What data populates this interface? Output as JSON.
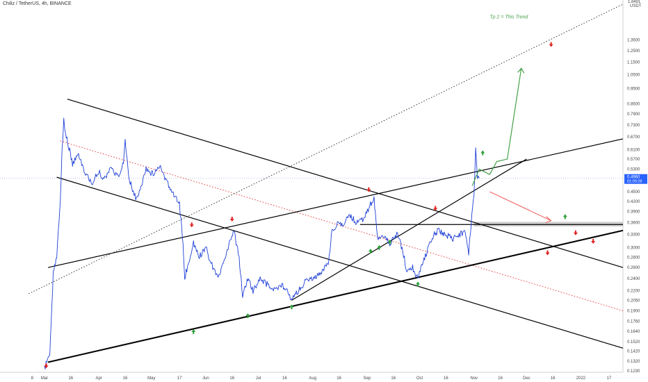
{
  "header": {
    "symbol": "Chiliz / TetherUS, 4h, BINANCE"
  },
  "chart_data": {
    "type": "candlestick-line",
    "title": "Chiliz / TetherUS, 4h, BINANCE",
    "axis_unit": [
      "1.8491",
      "USDT"
    ],
    "y_scale": "log",
    "ylim": [
      0.123,
      1.75
    ],
    "xlim": [
      "2021-03-01",
      "2022-01-25"
    ],
    "y_ticks": [
      "1.3500",
      "1.2500",
      "1.1500",
      "1.0500",
      "0.9500",
      "0.8500",
      "0.7900",
      "0.7300",
      "0.6700",
      "0.6100",
      "0.5700",
      "0.5300",
      "0.4960",
      "0.4500",
      "0.4200",
      "0.3900",
      "0.3600",
      "0.3300",
      "0.3000",
      "0.2800",
      "0.2600",
      "0.2400",
      "0.2200",
      "0.2050",
      "0.1900",
      "0.1760",
      "0.1640",
      "0.1520",
      "0.1420",
      "0.1320",
      "0.1230"
    ],
    "price_tag": {
      "value": "0.4960",
      "countdown": "01:09:28",
      "y": 0.496,
      "color": "#2962ff"
    },
    "x_ticks": [
      {
        "label": "8",
        "x": "2021-02-22"
      },
      {
        "label": "Mar",
        "x": "2021-03-01"
      },
      {
        "label": "16",
        "x": "2021-03-16"
      },
      {
        "label": "Apr",
        "x": "2021-04-01"
      },
      {
        "label": "16",
        "x": "2021-04-16"
      },
      {
        "label": "May",
        "x": "2021-05-01"
      },
      {
        "label": "17",
        "x": "2021-05-17"
      },
      {
        "label": "Jun",
        "x": "2021-06-01"
      },
      {
        "label": "16",
        "x": "2021-06-16"
      },
      {
        "label": "Jul",
        "x": "2021-07-01"
      },
      {
        "label": "16",
        "x": "2021-07-16"
      },
      {
        "label": "Aug",
        "x": "2021-08-01"
      },
      {
        "label": "16",
        "x": "2021-08-16"
      },
      {
        "label": "Sep",
        "x": "2021-09-01"
      },
      {
        "label": "16",
        "x": "2021-09-16"
      },
      {
        "label": "Oct",
        "x": "2021-10-01"
      },
      {
        "label": "16",
        "x": "2021-10-16"
      },
      {
        "label": "Nov",
        "x": "2021-11-01"
      },
      {
        "label": "16",
        "x": "2021-11-16"
      },
      {
        "label": "Dec",
        "x": "2021-12-01"
      },
      {
        "label": "16",
        "x": "2021-12-16"
      },
      {
        "label": "2022",
        "x": "2022-01-01"
      },
      {
        "label": "17",
        "x": "2022-01-17"
      }
    ],
    "price_path": [
      [
        "2021-03-01",
        0.125
      ],
      [
        "2021-03-04",
        0.14
      ],
      [
        "2021-03-06",
        0.25
      ],
      [
        "2021-03-08",
        0.28
      ],
      [
        "2021-03-10",
        0.42
      ],
      [
        "2021-03-11",
        0.6
      ],
      [
        "2021-03-12",
        0.76
      ],
      [
        "2021-03-13",
        0.68
      ],
      [
        "2021-03-15",
        0.62
      ],
      [
        "2021-03-17",
        0.55
      ],
      [
        "2021-03-20",
        0.6
      ],
      [
        "2021-03-24",
        0.52
      ],
      [
        "2021-03-28",
        0.48
      ],
      [
        "2021-04-01",
        0.52
      ],
      [
        "2021-04-04",
        0.49
      ],
      [
        "2021-04-08",
        0.54
      ],
      [
        "2021-04-12",
        0.5
      ],
      [
        "2021-04-15",
        0.56
      ],
      [
        "2021-04-16",
        0.66
      ],
      [
        "2021-04-18",
        0.5
      ],
      [
        "2021-04-22",
        0.43
      ],
      [
        "2021-04-25",
        0.46
      ],
      [
        "2021-04-28",
        0.53
      ],
      [
        "2021-05-02",
        0.51
      ],
      [
        "2021-05-06",
        0.54
      ],
      [
        "2021-05-10",
        0.48
      ],
      [
        "2021-05-13",
        0.45
      ],
      [
        "2021-05-17",
        0.41
      ],
      [
        "2021-05-19",
        0.31
      ],
      [
        "2021-05-20",
        0.24
      ],
      [
        "2021-05-22",
        0.27
      ],
      [
        "2021-05-25",
        0.31
      ],
      [
        "2021-05-28",
        0.28
      ],
      [
        "2021-06-01",
        0.3
      ],
      [
        "2021-06-05",
        0.26
      ],
      [
        "2021-06-08",
        0.24
      ],
      [
        "2021-06-12",
        0.28
      ],
      [
        "2021-06-15",
        0.32
      ],
      [
        "2021-06-17",
        0.34
      ],
      [
        "2021-06-20",
        0.28
      ],
      [
        "2021-06-22",
        0.21
      ],
      [
        "2021-06-25",
        0.24
      ],
      [
        "2021-06-28",
        0.22
      ],
      [
        "2021-07-02",
        0.24
      ],
      [
        "2021-07-06",
        0.23
      ],
      [
        "2021-07-10",
        0.22
      ],
      [
        "2021-07-14",
        0.23
      ],
      [
        "2021-07-18",
        0.22
      ],
      [
        "2021-07-20",
        0.205
      ],
      [
        "2021-07-24",
        0.22
      ],
      [
        "2021-07-28",
        0.235
      ],
      [
        "2021-08-02",
        0.24
      ],
      [
        "2021-08-06",
        0.25
      ],
      [
        "2021-08-10",
        0.27
      ],
      [
        "2021-08-12",
        0.34
      ],
      [
        "2021-08-16",
        0.36
      ],
      [
        "2021-08-18",
        0.35
      ],
      [
        "2021-08-22",
        0.38
      ],
      [
        "2021-08-26",
        0.36
      ],
      [
        "2021-08-30",
        0.37
      ],
      [
        "2021-09-03",
        0.41
      ],
      [
        "2021-09-05",
        0.43
      ],
      [
        "2021-09-07",
        0.32
      ],
      [
        "2021-09-10",
        0.33
      ],
      [
        "2021-09-14",
        0.31
      ],
      [
        "2021-09-18",
        0.33
      ],
      [
        "2021-09-21",
        0.3
      ],
      [
        "2021-09-24",
        0.25
      ],
      [
        "2021-09-27",
        0.26
      ],
      [
        "2021-09-30",
        0.24
      ],
      [
        "2021-10-03",
        0.27
      ],
      [
        "2021-10-06",
        0.3
      ],
      [
        "2021-10-09",
        0.33
      ],
      [
        "2021-10-12",
        0.34
      ],
      [
        "2021-10-16",
        0.33
      ],
      [
        "2021-10-20",
        0.32
      ],
      [
        "2021-10-24",
        0.33
      ],
      [
        "2021-10-27",
        0.34
      ],
      [
        "2021-10-29",
        0.29
      ],
      [
        "2021-10-30",
        0.34
      ],
      [
        "2021-11-01",
        0.44
      ],
      [
        "2021-11-02",
        0.62
      ],
      [
        "2021-11-03",
        0.5
      ],
      [
        "2021-11-04",
        0.496
      ]
    ],
    "lines": [
      {
        "name": "descending-channel-upper",
        "from": [
          "2021-03-14",
          0.88
        ],
        "to": [
          "2022-01-25",
          0.26
        ],
        "style": "solid",
        "color": "#000000",
        "width": 1.2
      },
      {
        "name": "descending-channel-lower",
        "from": [
          "2021-03-08",
          0.5
        ],
        "to": [
          "2022-01-25",
          0.145
        ],
        "style": "solid",
        "color": "#000000",
        "width": 1.2
      },
      {
        "name": "descending-midline",
        "from": [
          "2021-03-10",
          0.65
        ],
        "to": [
          "2022-01-25",
          0.19
        ],
        "style": "dotted",
        "color": "#e53935",
        "width": 1
      },
      {
        "name": "ascending-support",
        "from": [
          "2021-03-03",
          0.131
        ],
        "to": [
          "2022-01-25",
          0.34
        ],
        "style": "solid",
        "color": "#000000",
        "width": 2
      },
      {
        "name": "ascending-resistance",
        "from": [
          "2021-03-03",
          0.26
        ],
        "to": [
          "2022-01-25",
          0.66
        ],
        "style": "solid",
        "color": "#000000",
        "width": 1.2
      },
      {
        "name": "dotted-trend",
        "from": [
          "2021-02-20",
          0.215
        ],
        "to": [
          "2022-01-25",
          1.75
        ],
        "style": "dotted",
        "color": "#333333",
        "width": 1
      },
      {
        "name": "inner-trend",
        "from": [
          "2021-07-20",
          0.205
        ],
        "to": [
          "2021-12-01",
          0.57
        ],
        "style": "solid",
        "color": "#000000",
        "width": 1.2
      },
      {
        "name": "horizontal-level",
        "from": [
          "2021-08-28",
          0.355
        ],
        "to": [
          "2022-01-25",
          0.355
        ],
        "style": "solid",
        "color": "#000000",
        "width": 1.2
      }
    ],
    "zone": {
      "y1": 0.35,
      "y2": 0.362,
      "from": "2021-11-01",
      "to": "2022-01-25",
      "color": "#b0b0b0"
    },
    "tp_path": {
      "name": "tp2-path",
      "color": "#43a047",
      "points": [
        [
          "2021-10-31",
          0.47
        ],
        [
          "2021-11-04",
          0.53
        ],
        [
          "2021-11-10",
          0.51
        ],
        [
          "2021-11-14",
          0.56
        ],
        [
          "2021-11-20",
          0.57
        ],
        [
          "2021-11-28",
          1.1
        ]
      ]
    },
    "red_arrow": {
      "from": [
        "2021-11-10",
        0.45
      ],
      "to": [
        "2021-12-15",
        0.365
      ],
      "color": "#ef5350"
    },
    "annotation": {
      "text": "Tp 2 = This Trend",
      "x": "2021-11-10",
      "y": 1.58,
      "color": "#43a047"
    },
    "markers_up": [
      [
        "2021-05-25",
        0.163
      ],
      [
        "2021-06-25",
        0.183
      ],
      [
        "2021-07-20",
        0.195
      ],
      [
        "2021-09-03",
        0.292
      ],
      [
        "2021-09-08",
        0.3
      ],
      [
        "2021-09-14",
        0.312
      ],
      [
        "2021-09-30",
        0.23
      ],
      [
        "2021-11-06",
        0.595
      ],
      [
        "2021-12-23",
        0.375
      ]
    ],
    "markers_down": [
      [
        "2021-03-02",
        0.128
      ],
      [
        "2021-05-24",
        0.355
      ],
      [
        "2021-06-16",
        0.37
      ],
      [
        "2021-09-02",
        0.458
      ],
      [
        "2021-10-10",
        0.4
      ],
      [
        "2021-12-13",
        0.29
      ],
      [
        "2021-12-29",
        0.335
      ],
      [
        "2022-01-08",
        0.315
      ],
      [
        "2021-12-15",
        1.31
      ]
    ]
  }
}
